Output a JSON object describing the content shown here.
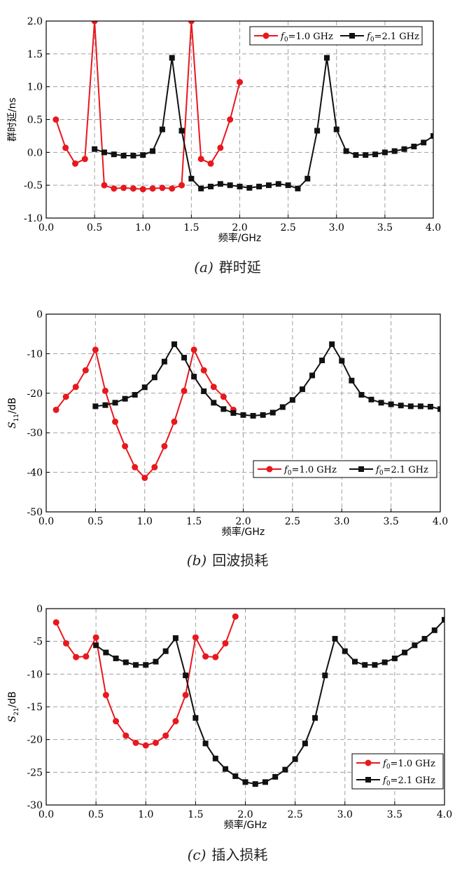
{
  "chart_data": [
    {
      "type": "line",
      "caption_tag": "(a)",
      "caption_text": "群时延",
      "xlabel": "频率/GHz",
      "ylabel": "群时延/ns",
      "xlim": [
        0.0,
        4.0
      ],
      "ylim": [
        -1.0,
        2.0
      ],
      "xticks": [
        "0.0",
        "0.5",
        "1.0",
        "1.5",
        "2.0",
        "2.5",
        "3.0",
        "3.5",
        "4.0"
      ],
      "yticks": [
        "-1.0",
        "-0.5",
        "0.0",
        "0.5",
        "1.0",
        "1.5",
        "2.0"
      ],
      "grid": true,
      "legend_position": "top-right",
      "series": [
        {
          "name_main": "f",
          "name_sub": "0",
          "name_rest": "=1.0 GHz",
          "color": "#e8191e",
          "marker": "circle",
          "x": [
            0.1,
            0.2,
            0.3,
            0.4,
            0.5,
            0.6,
            0.7,
            0.8,
            0.9,
            1.0,
            1.1,
            1.2,
            1.3,
            1.4,
            1.5,
            1.6,
            1.7,
            1.8,
            1.9,
            2.0
          ],
          "y": [
            0.5,
            0.07,
            -0.17,
            -0.1,
            2.0,
            -0.5,
            -0.55,
            -0.54,
            -0.55,
            -0.56,
            -0.55,
            -0.54,
            -0.55,
            -0.5,
            2.0,
            -0.1,
            -0.17,
            0.07,
            0.5,
            1.07
          ]
        },
        {
          "name_main": "f",
          "name_sub": "0",
          "name_rest": "=2.1 GHz",
          "color": "#111111",
          "marker": "square",
          "x": [
            0.5,
            0.6,
            0.7,
            0.8,
            0.9,
            1.0,
            1.1,
            1.2,
            1.3,
            1.4,
            1.5,
            1.6,
            1.7,
            1.8,
            1.9,
            2.0,
            2.1,
            2.2,
            2.3,
            2.4,
            2.5,
            2.6,
            2.7,
            2.8,
            2.9,
            3.0,
            3.1,
            3.2,
            3.3,
            3.4,
            3.5,
            3.6,
            3.7,
            3.8,
            3.9,
            4.0
          ],
          "y": [
            0.05,
            0.0,
            -0.03,
            -0.05,
            -0.05,
            -0.04,
            0.02,
            0.35,
            1.44,
            0.33,
            -0.4,
            -0.55,
            -0.52,
            -0.48,
            -0.5,
            -0.52,
            -0.54,
            -0.52,
            -0.5,
            -0.48,
            -0.5,
            -0.55,
            -0.4,
            0.33,
            1.44,
            0.35,
            0.02,
            -0.04,
            -0.04,
            -0.03,
            0.0,
            0.02,
            0.05,
            0.09,
            0.15,
            0.25
          ]
        }
      ]
    },
    {
      "type": "line",
      "caption_tag": "(b)",
      "caption_text": "回波损耗",
      "xlabel": "频率/GHz",
      "ylabel_main": "S",
      "ylabel_sub": "11",
      "ylabel_rest": "/dB",
      "xlim": [
        0.0,
        4.0
      ],
      "ylim": [
        -50,
        0
      ],
      "xticks": [
        "0.0",
        "0.5",
        "1.0",
        "1.5",
        "2.0",
        "2.5",
        "3.0",
        "3.5",
        "4.0"
      ],
      "yticks": [
        "-50",
        "-40",
        "-30",
        "-20",
        "-10",
        "0"
      ],
      "grid": true,
      "legend_position": "bottom-right",
      "series": [
        {
          "name_main": "f",
          "name_sub": "0",
          "name_rest": "=1.0 GHz",
          "color": "#e8191e",
          "marker": "circle",
          "x": [
            0.1,
            0.2,
            0.3,
            0.4,
            0.5,
            0.6,
            0.7,
            0.8,
            0.9,
            1.0,
            1.1,
            1.2,
            1.3,
            1.4,
            1.5,
            1.6,
            1.7,
            1.8,
            1.9
          ],
          "y": [
            -24.2,
            -20.9,
            -18.4,
            -14.2,
            -9.0,
            -19.4,
            -27.2,
            -33.4,
            -38.7,
            -41.4,
            -38.7,
            -33.4,
            -27.2,
            -19.4,
            -9.0,
            -14.2,
            -18.4,
            -20.9,
            -24.2
          ]
        },
        {
          "name_main": "f",
          "name_sub": "0",
          "name_rest": "=2.1 GHz",
          "color": "#111111",
          "marker": "square",
          "x": [
            0.5,
            0.6,
            0.7,
            0.8,
            0.9,
            1.0,
            1.1,
            1.2,
            1.3,
            1.4,
            1.5,
            1.6,
            1.7,
            1.8,
            1.9,
            2.0,
            2.1,
            2.2,
            2.3,
            2.4,
            2.5,
            2.6,
            2.7,
            2.8,
            2.9,
            3.0,
            3.1,
            3.2,
            3.3,
            3.4,
            3.5,
            3.6,
            3.7,
            3.8,
            3.9,
            4.0
          ],
          "y": [
            -23.3,
            -23.0,
            -22.4,
            -21.4,
            -20.4,
            -18.5,
            -16.0,
            -12.0,
            -7.6,
            -11.0,
            -15.8,
            -19.5,
            -22.4,
            -24.0,
            -25.0,
            -25.5,
            -25.7,
            -25.5,
            -24.9,
            -23.5,
            -21.7,
            -19.0,
            -15.5,
            -11.7,
            -7.6,
            -11.8,
            -16.8,
            -20.4,
            -21.6,
            -22.4,
            -22.8,
            -23.1,
            -23.3,
            -23.3,
            -23.4,
            -24.0
          ]
        }
      ]
    },
    {
      "type": "line",
      "caption_tag": "(c)",
      "caption_text": "插入损耗",
      "xlabel": "频率/GHz",
      "ylabel_main": "S",
      "ylabel_sub": "21",
      "ylabel_rest": "/dB",
      "xlim": [
        0.0,
        4.0
      ],
      "ylim": [
        -30,
        0
      ],
      "xticks": [
        "0.0",
        "0.5",
        "1.0",
        "1.5",
        "2.0",
        "2.5",
        "3.0",
        "3.5",
        "4.0"
      ],
      "yticks": [
        "-30",
        "-25",
        "-20",
        "-15",
        "-10",
        "-5",
        "0"
      ],
      "grid": true,
      "legend_position": "bottom-right",
      "series": [
        {
          "name_main": "f",
          "name_sub": "0",
          "name_rest": "=1.0 GHz",
          "color": "#e8191e",
          "marker": "circle",
          "x": [
            0.1,
            0.2,
            0.3,
            0.4,
            0.5,
            0.6,
            0.7,
            0.8,
            0.9,
            1.0,
            1.1,
            1.2,
            1.3,
            1.4,
            1.5,
            1.6,
            1.7,
            1.8,
            1.9
          ],
          "y": [
            -2.1,
            -5.3,
            -7.4,
            -7.3,
            -4.4,
            -13.2,
            -17.2,
            -19.4,
            -20.5,
            -20.9,
            -20.5,
            -19.4,
            -17.2,
            -13.2,
            -4.4,
            -7.3,
            -7.4,
            -5.3,
            -1.2
          ]
        },
        {
          "name_main": "f",
          "name_sub": "0",
          "name_rest": "=2.1 GHz",
          "color": "#111111",
          "marker": "square",
          "x": [
            0.5,
            0.6,
            0.7,
            0.8,
            0.9,
            1.0,
            1.1,
            1.2,
            1.3,
            1.4,
            1.5,
            1.6,
            1.7,
            1.8,
            1.9,
            2.0,
            2.1,
            2.2,
            2.3,
            2.4,
            2.5,
            2.6,
            2.7,
            2.8,
            2.9,
            3.0,
            3.1,
            3.2,
            3.3,
            3.4,
            3.5,
            3.6,
            3.7,
            3.8,
            3.9,
            4.0
          ],
          "y": [
            -5.6,
            -6.7,
            -7.6,
            -8.2,
            -8.6,
            -8.6,
            -8.1,
            -6.5,
            -4.5,
            -10.2,
            -16.7,
            -20.6,
            -22.9,
            -24.5,
            -25.6,
            -26.5,
            -26.8,
            -26.5,
            -25.7,
            -24.6,
            -23.0,
            -20.6,
            -16.7,
            -10.2,
            -4.6,
            -6.5,
            -8.1,
            -8.6,
            -8.6,
            -8.2,
            -7.6,
            -6.7,
            -5.6,
            -4.6,
            -3.3,
            -1.7
          ]
        }
      ]
    }
  ]
}
